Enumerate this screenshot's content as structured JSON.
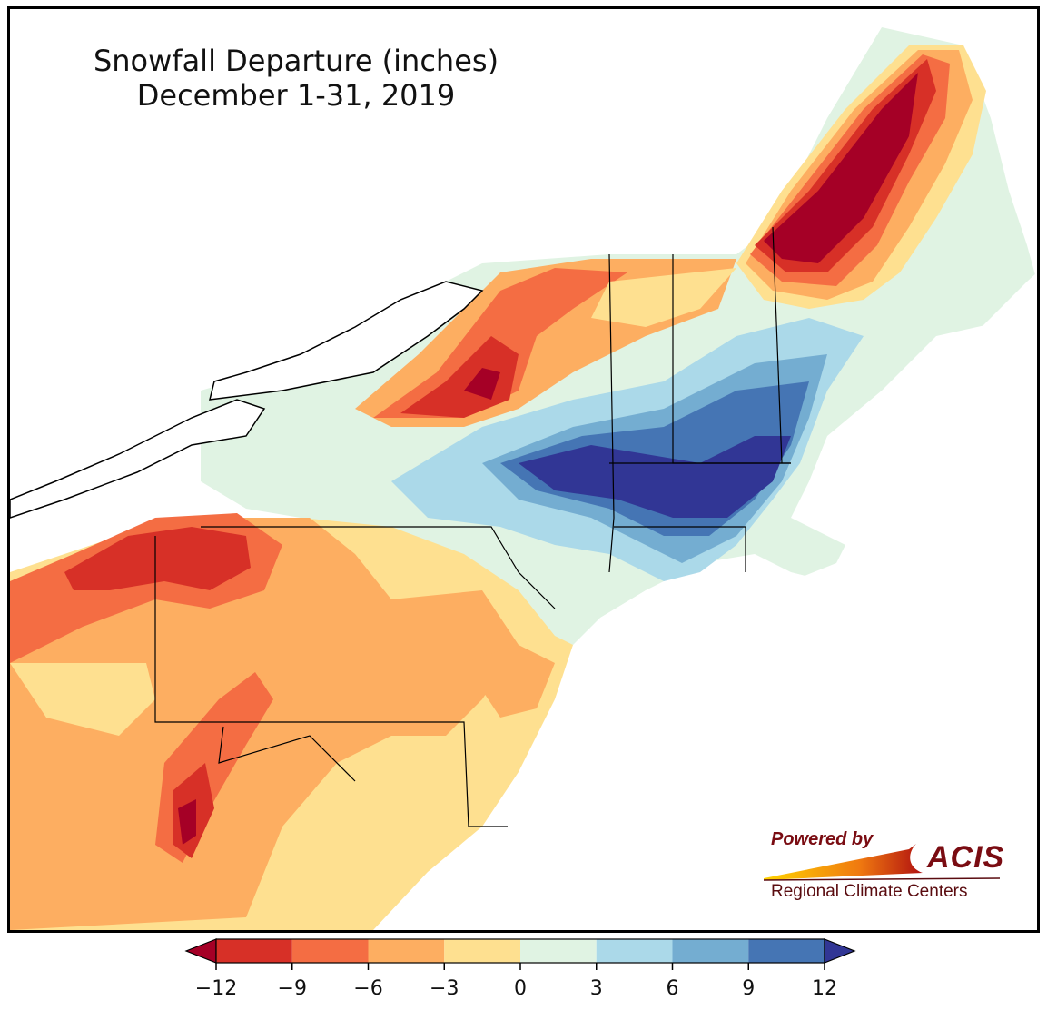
{
  "title": {
    "line1": "Snowfall Departure (inches)",
    "line2": "December 1-31, 2019"
  },
  "logo": {
    "powered": "Powered by",
    "name": "ACIS",
    "subtitle": "Regional Climate Centers"
  },
  "colorbar": {
    "ticks": [
      "−12",
      "−9",
      "−6",
      "−3",
      "0",
      "3",
      "6",
      "9",
      "12"
    ],
    "bins": [
      {
        "range": "<-12",
        "color": "#a50026"
      },
      {
        "range": "-12 to -9",
        "color": "#d73027"
      },
      {
        "range": "-9 to -6",
        "color": "#f46d43"
      },
      {
        "range": "-6 to -3",
        "color": "#fdae61"
      },
      {
        "range": "-3 to 0",
        "color": "#fee090"
      },
      {
        "range": "0 to 3",
        "color": "#e0f3e3"
      },
      {
        "range": "3 to 6",
        "color": "#abd9e9"
      },
      {
        "range": "6 to 9",
        "color": "#74add1"
      },
      {
        "range": "9 to 12",
        "color": "#4575b4"
      },
      {
        "range": ">12",
        "color": "#313695"
      }
    ]
  },
  "legend_colors": {
    "below_-12": "#a50026",
    "n12_n9": "#d73027",
    "n9_n6": "#f46d43",
    "n6_n3": "#fdae61",
    "n3_0": "#fee090",
    "p0_3": "#e0f3e3",
    "p3_6": "#abd9e9",
    "p6_9": "#74add1",
    "p9_12": "#4575b4",
    "above_12": "#313695"
  }
}
